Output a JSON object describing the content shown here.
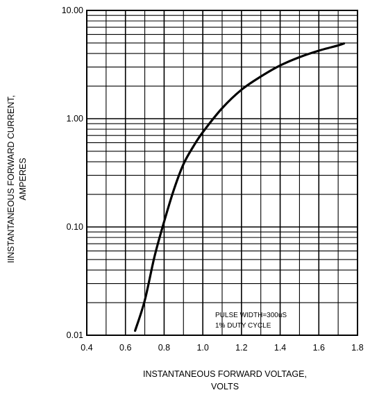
{
  "chart_data": {
    "type": "line",
    "title": "",
    "xlabel_lines": [
      "INSTANTANEOUS FORWARD VOLTAGE,",
      "VOLTS"
    ],
    "ylabel_lines": [
      "IINSTANTANEOUS FORWARD CURRENT,",
      "AMPERES"
    ],
    "xlim": [
      0.4,
      1.8
    ],
    "ylim": [
      0.01,
      10
    ],
    "yscale": "log",
    "x_ticks": [
      "0.4",
      "0.6",
      "0.8",
      "1.0",
      "1.2",
      "1.4",
      "1.6",
      "1.8"
    ],
    "y_ticks": [
      "0.01",
      "0.10",
      "1.00",
      "10.00"
    ],
    "grid": true,
    "annotation_lines": [
      "PULSE WIDTH=300uS",
      "1% DUTY CYCLE"
    ],
    "series": [
      {
        "x": [
          0.65,
          0.7,
          0.75,
          0.8,
          0.85,
          0.9,
          0.95,
          1.0,
          1.1,
          1.2,
          1.3,
          1.4,
          1.5,
          1.6,
          1.7,
          1.73
        ],
        "y": [
          0.011,
          0.021,
          0.053,
          0.112,
          0.22,
          0.38,
          0.55,
          0.75,
          1.25,
          1.85,
          2.45,
          3.1,
          3.7,
          4.25,
          4.75,
          4.95
        ]
      }
    ]
  }
}
